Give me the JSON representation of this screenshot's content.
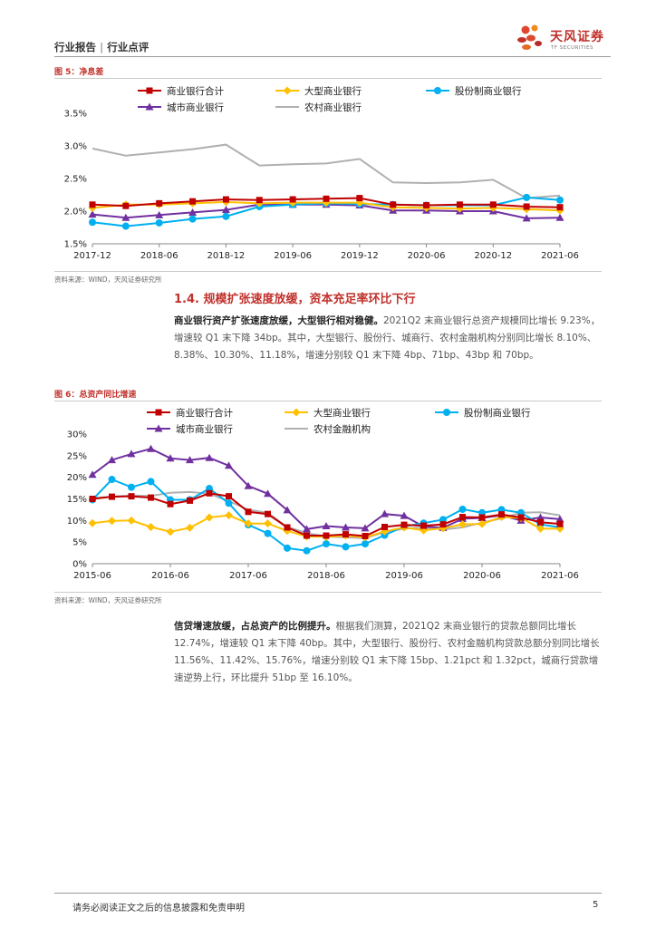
{
  "header": {
    "category": "行业报告",
    "separator": "|",
    "subcategory": "行业点评",
    "brand_name": "天风证券",
    "brand_sub": "TF SECURITIES",
    "brand_color": "#c0312b"
  },
  "section": {
    "title": "1.4. 规模扩张速度放缓，资本充足率环比下行"
  },
  "paragraphs": {
    "p1_bold": "商业银行资产扩张速度放缓，大型银行相对稳健。",
    "p1_text": "2021Q2 末商业银行总资产规模同比增长 9.23%，增速较 Q1 末下降 34bp。其中，大型银行、股份行、城商行、农村金融机构分别同比增长 8.10%、8.38%、10.30%、11.18%，增速分别较 Q1 末下降 4bp、71bp、43bp 和 70bp。",
    "p2_bold": "信贷增速放缓，占总资产的比例提升。",
    "p2_text": "根据我们测算，2021Q2 末商业银行的贷款总额同比增长 12.74%，增速较 Q1 末下降 40bp。其中，大型银行、股份行、农村金融机构贷款总额分别同比增长 11.56%、11.42%、15.76%，增速分别较 Q1 末下降 15bp、1.21pct 和 1.32pct，城商行贷款增速逆势上行，环比提升 51bp 至 16.10%。"
  },
  "footer": {
    "disclaimer": "请务必阅读正文之后的信息披露和免责申明",
    "page_number": "5"
  },
  "chart_data": [
    {
      "type": "line",
      "figure_label": "图 5：净息差",
      "source": "资料来源：WIND，天风证券研究所",
      "x": [
        "2017-12",
        "2018-03",
        "2018-06",
        "2018-09",
        "2018-12",
        "2019-03",
        "2019-06",
        "2019-09",
        "2019-12",
        "2020-03",
        "2020-06",
        "2020-09",
        "2020-12",
        "2021-03",
        "2021-06"
      ],
      "x_tick_labels": [
        "2017-12",
        "2018-06",
        "2018-12",
        "2019-06",
        "2019-12",
        "2020-06",
        "2020-12",
        "2021-06"
      ],
      "y_tick_labels": [
        "1.5%",
        "2.0%",
        "2.5%",
        "3.0%",
        "3.5%"
      ],
      "ylim": [
        1.5,
        3.5
      ],
      "legend_position": "top",
      "series": [
        {
          "name": "商业银行合计",
          "color": "#c00000",
          "marker": "square",
          "values": [
            2.1,
            2.08,
            2.12,
            2.15,
            2.18,
            2.17,
            2.18,
            2.19,
            2.2,
            2.1,
            2.09,
            2.1,
            2.1,
            2.07,
            2.06
          ]
        },
        {
          "name": "大型商业银行",
          "color": "#ffc000",
          "marker": "diamond",
          "values": [
            2.05,
            2.1,
            2.1,
            2.12,
            2.14,
            2.12,
            2.13,
            2.13,
            2.13,
            2.06,
            2.05,
            2.04,
            2.05,
            2.03,
            2.01
          ]
        },
        {
          "name": "股份制商业银行",
          "color": "#00b0f0",
          "marker": "circle",
          "values": [
            1.83,
            1.77,
            1.82,
            1.88,
            1.92,
            2.07,
            2.1,
            2.12,
            2.11,
            2.1,
            2.09,
            2.09,
            2.09,
            2.21,
            2.17
          ]
        },
        {
          "name": "城市商业银行",
          "color": "#7030a0",
          "marker": "triangle",
          "values": [
            1.95,
            1.9,
            1.94,
            1.98,
            2.02,
            2.1,
            2.1,
            2.1,
            2.09,
            2.01,
            2.01,
            2.0,
            2.0,
            1.89,
            1.9
          ]
        },
        {
          "name": "农村商业银行",
          "color": "#b0b0b0",
          "marker": "none",
          "values": [
            2.96,
            2.85,
            2.9,
            2.95,
            3.02,
            2.7,
            2.72,
            2.73,
            2.8,
            2.44,
            2.43,
            2.44,
            2.48,
            2.2,
            2.24
          ]
        }
      ]
    },
    {
      "type": "line",
      "figure_label": "图 6：总资产同比增速",
      "source": "资料来源：WIND，天风证券研究所",
      "x": [
        "2015-06",
        "2015-09",
        "2015-12",
        "2016-03",
        "2016-06",
        "2016-09",
        "2016-12",
        "2017-03",
        "2017-06",
        "2017-09",
        "2017-12",
        "2018-03",
        "2018-06",
        "2018-09",
        "2018-12",
        "2019-03",
        "2019-06",
        "2019-09",
        "2019-12",
        "2020-03",
        "2020-06",
        "2020-09",
        "2020-12",
        "2021-03",
        "2021-06"
      ],
      "x_tick_labels": [
        "2015-06",
        "2016-06",
        "2017-06",
        "2018-06",
        "2019-06",
        "2020-06",
        "2021-06"
      ],
      "y_tick_labels": [
        "0%",
        "5%",
        "10%",
        "15%",
        "20%",
        "25%",
        "30%"
      ],
      "ylim": [
        0,
        30
      ],
      "legend_position": "top",
      "series": [
        {
          "name": "商业银行合计",
          "color": "#c00000",
          "marker": "square",
          "values": [
            15.0,
            15.5,
            15.6,
            15.3,
            13.8,
            14.6,
            16.3,
            15.6,
            12.0,
            11.5,
            8.4,
            6.5,
            6.5,
            6.8,
            6.4,
            8.5,
            9.0,
            8.8,
            9.1,
            10.8,
            10.7,
            11.4,
            10.7,
            9.6,
            9.2
          ]
        },
        {
          "name": "大型商业银行",
          "color": "#ffc000",
          "marker": "diamond",
          "values": [
            9.4,
            9.9,
            10.0,
            8.5,
            7.4,
            8.3,
            10.7,
            11.2,
            9.3,
            9.3,
            7.6,
            6.3,
            6.2,
            6.5,
            6.1,
            7.5,
            8.4,
            7.7,
            8.2,
            9.1,
            9.2,
            10.8,
            10.6,
            8.1,
            8.1
          ]
        },
        {
          "name": "股份制商业银行",
          "color": "#00b0f0",
          "marker": "circle",
          "values": [
            14.8,
            19.5,
            17.7,
            19.0,
            14.8,
            14.8,
            17.4,
            14.0,
            9.0,
            7.0,
            3.6,
            3.0,
            4.6,
            3.9,
            4.6,
            6.6,
            8.6,
            9.4,
            10.2,
            12.6,
            11.8,
            12.5,
            11.8,
            9.1,
            8.4
          ]
        },
        {
          "name": "城市商业银行",
          "color": "#7030a0",
          "marker": "triangle",
          "values": [
            20.6,
            24.0,
            25.4,
            26.6,
            24.4,
            24.0,
            24.5,
            22.7,
            18.0,
            16.2,
            12.4,
            8.0,
            8.7,
            8.4,
            8.2,
            11.5,
            11.1,
            8.6,
            8.3,
            10.4,
            10.6,
            11.2,
            10.0,
            10.7,
            10.3
          ]
        },
        {
          "name": "农村金融机构",
          "color": "#b0b0b0",
          "marker": "none",
          "values": [
            15.2,
            15.5,
            15.8,
            15.7,
            16.4,
            16.6,
            16.2,
            14.5,
            12.5,
            11.8,
            8.5,
            7.1,
            6.3,
            6.1,
            5.9,
            7.3,
            8.1,
            8.4,
            7.9,
            8.4,
            9.5,
            10.5,
            11.8,
            11.9,
            11.2
          ]
        }
      ]
    }
  ]
}
